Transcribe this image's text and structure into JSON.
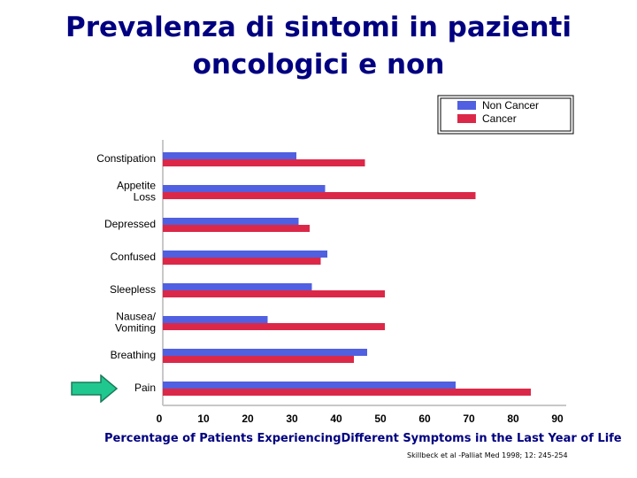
{
  "slide": {
    "title_line1": "Prevalenza di sintomi in pazienti",
    "title_line2": "oncologici e non",
    "footnote": "Percentage of Patients ExperiencingDifferent Symptoms in the Last Year of Life",
    "citation": "Skillbeck et al -Palliat Med 1998; 12: 245-254"
  },
  "colors": {
    "title": "#000080",
    "non_cancer": "#5060e0",
    "cancer": "#dc2848",
    "arrow_fill": "#20c890",
    "arrow_stroke": "#1a7a5a"
  },
  "highlight": {
    "icon": "right-arrow-icon",
    "category": "Pain"
  },
  "chart_data": {
    "type": "bar",
    "orientation": "horizontal",
    "categories": [
      [
        "Constipation"
      ],
      [
        "Appetite",
        "Loss"
      ],
      [
        "Depressed"
      ],
      [
        "Confused"
      ],
      [
        "Sleepless"
      ],
      [
        "Nausea/",
        "Vomiting"
      ],
      [
        "Breathing"
      ],
      [
        "Pain"
      ]
    ],
    "series": [
      {
        "name": "Non Cancer",
        "values": [
          31,
          37.5,
          31.5,
          38,
          34.5,
          24.5,
          47,
          67
        ],
        "color": "#5060e0"
      },
      {
        "name": "Cancer",
        "values": [
          46.5,
          71.5,
          34,
          36.5,
          51,
          51,
          44,
          84
        ],
        "color": "#dc2848"
      }
    ],
    "xlim": [
      0,
      90
    ],
    "xticks": [
      0,
      10,
      20,
      30,
      40,
      50,
      60,
      70,
      80,
      90
    ],
    "legend_position": "top-right",
    "grid": false
  }
}
